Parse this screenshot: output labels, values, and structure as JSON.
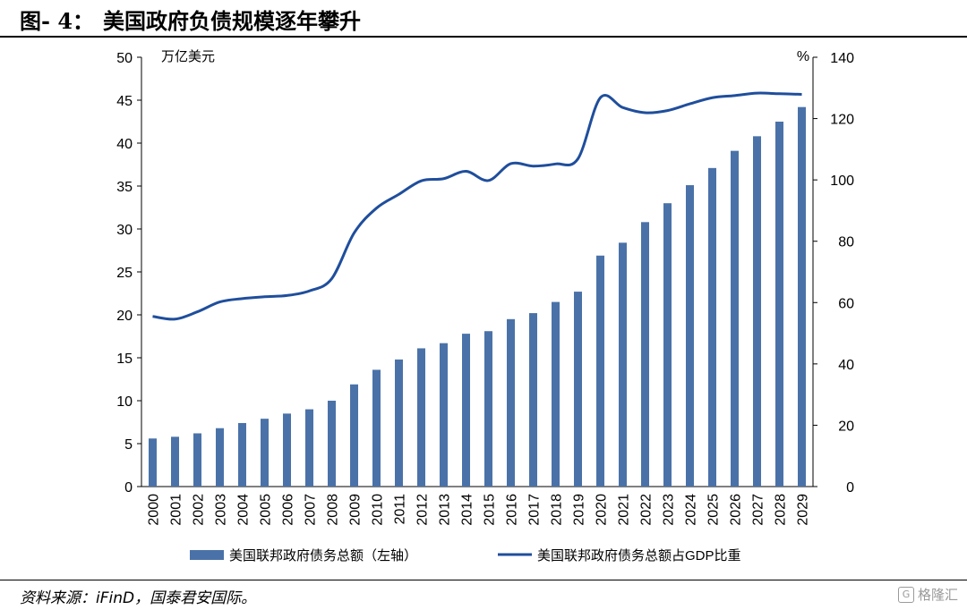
{
  "figure": {
    "label": "图- 4：",
    "title": "美国政府负债规模逐年攀升",
    "source": "资料来源：iFinD，国泰君安国际。",
    "watermark": "格隆汇"
  },
  "chart_data": {
    "type": "bar",
    "categories": [
      "2000",
      "2001",
      "2002",
      "2003",
      "2004",
      "2005",
      "2006",
      "2007",
      "2008",
      "2009",
      "2010",
      "2011",
      "2012",
      "2013",
      "2014",
      "2015",
      "2016",
      "2017",
      "2018",
      "2019",
      "2020",
      "2021",
      "2022",
      "2023",
      "2024",
      "2025",
      "2026",
      "2027",
      "2028",
      "2029"
    ],
    "series": [
      {
        "name": "美国联邦政府债务总额（左轴）",
        "type": "bar",
        "axis": "left",
        "color": "#4a72a8",
        "values": [
          5.6,
          5.8,
          6.2,
          6.8,
          7.4,
          7.9,
          8.5,
          9.0,
          10.0,
          11.9,
          13.6,
          14.8,
          16.1,
          16.7,
          17.8,
          18.1,
          19.5,
          20.2,
          21.5,
          22.7,
          26.9,
          28.4,
          30.8,
          33.0,
          35.1,
          37.1,
          39.1,
          40.8,
          42.5,
          44.2
        ]
      },
      {
        "name": "美国联邦政府债务总额占GDP比重",
        "type": "line",
        "axis": "right",
        "color": "#1f4e9c",
        "values": [
          55.5,
          54.6,
          57.0,
          60.2,
          61.3,
          61.9,
          62.3,
          63.8,
          67.8,
          82.7,
          90.8,
          95.3,
          99.7,
          100.4,
          102.8,
          99.8,
          105.3,
          104.5,
          105.2,
          106.9,
          126.8,
          123.6,
          121.9,
          122.6,
          124.8,
          126.8,
          127.5,
          128.3,
          128.1,
          127.9
        ]
      }
    ],
    "y_left": {
      "label": "万亿美元",
      "min": 0,
      "max": 50,
      "ticks": [
        0,
        5,
        10,
        15,
        20,
        25,
        30,
        35,
        40,
        45,
        50
      ]
    },
    "y_right": {
      "label": "%",
      "min": 0,
      "max": 140,
      "ticks": [
        0,
        20,
        40,
        60,
        80,
        100,
        120,
        140
      ]
    },
    "grid": false,
    "legend": "bottom"
  }
}
